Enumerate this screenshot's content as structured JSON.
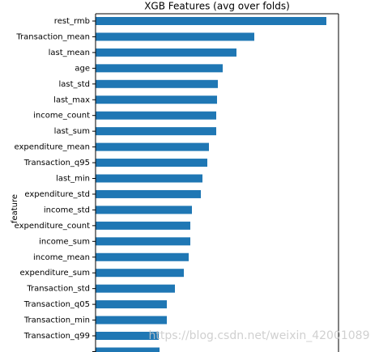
{
  "chart_data": {
    "type": "barh",
    "title": "XGB Features (avg over folds)",
    "y_label": "feature",
    "categories": [
      "rest_rmb",
      "Transaction_mean",
      "last_mean",
      "age",
      "last_std",
      "last_max",
      "income_count",
      "last_sum",
      "expenditure_mean",
      "Transaction_q95",
      "last_min",
      "expenditure_std",
      "income_std",
      "expenditure_count",
      "income_sum",
      "income_mean",
      "expenditure_sum",
      "Transaction_std",
      "Transaction_q05",
      "Transaction_min",
      "Transaction_q99",
      null
    ],
    "values": [
      285,
      196,
      174,
      157,
      151,
      150,
      149,
      149,
      140,
      138,
      132,
      130,
      119,
      117,
      117,
      115,
      109,
      98,
      88,
      88,
      78,
      79
    ],
    "color": "#1f77b4",
    "xlim": [
      0,
      300
    ],
    "watermark": "https://blog.csdn.net/weixin_42001089"
  }
}
